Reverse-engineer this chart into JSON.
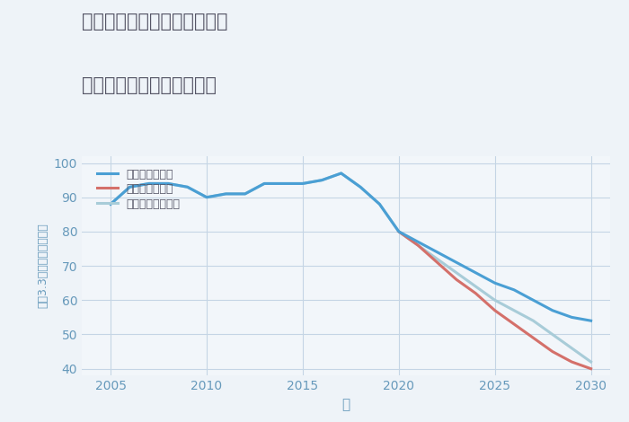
{
  "title_line1": "三重県松阪市飯南町向粥見の",
  "title_line2": "中古マンションの価格推移",
  "xlabel": "年",
  "ylabel": "坪（3.3㎡）単価（万円）",
  "xlim": [
    2003.5,
    2031
  ],
  "ylim": [
    38,
    102
  ],
  "yticks": [
    40,
    50,
    60,
    70,
    80,
    90,
    100
  ],
  "xticks": [
    2005,
    2010,
    2015,
    2020,
    2025,
    2030
  ],
  "fig_bg_color": "#eef3f8",
  "plot_bg_color": "#f2f6fa",
  "grid_color": "#c5d5e5",
  "good_scenario": {
    "label": "グッドシナリオ",
    "color": "#4a9fd4",
    "x": [
      2005,
      2006,
      2007,
      2008,
      2009,
      2010,
      2011,
      2012,
      2013,
      2014,
      2015,
      2016,
      2017,
      2018,
      2019,
      2020,
      2021,
      2022,
      2023,
      2024,
      2025,
      2026,
      2027,
      2028,
      2029,
      2030
    ],
    "y": [
      88,
      93,
      94,
      94,
      93,
      90,
      91,
      91,
      94,
      94,
      94,
      95,
      97,
      93,
      88,
      80,
      77,
      74,
      71,
      68,
      65,
      63,
      60,
      57,
      55,
      54
    ]
  },
  "bad_scenario": {
    "label": "バッドシナリオ",
    "color": "#d4706a",
    "x": [
      2020,
      2021,
      2022,
      2023,
      2024,
      2025,
      2026,
      2027,
      2028,
      2029,
      2030
    ],
    "y": [
      80,
      76,
      71,
      66,
      62,
      57,
      53,
      49,
      45,
      42,
      40
    ]
  },
  "normal_scenario": {
    "label": "ノーマルシナリオ",
    "color": "#a8ccd8",
    "x": [
      2005,
      2006,
      2007,
      2008,
      2009,
      2010,
      2011,
      2012,
      2013,
      2014,
      2015,
      2016,
      2017,
      2018,
      2019,
      2020,
      2021,
      2022,
      2023,
      2024,
      2025,
      2026,
      2027,
      2028,
      2029,
      2030
    ],
    "y": [
      88,
      93,
      94,
      94,
      93,
      90,
      91,
      91,
      94,
      94,
      94,
      95,
      97,
      93,
      88,
      80,
      76,
      72,
      68,
      64,
      60,
      57,
      54,
      50,
      46,
      42
    ]
  },
  "title_color": "#555566",
  "tick_color": "#6699bb",
  "line_width": 2.2
}
